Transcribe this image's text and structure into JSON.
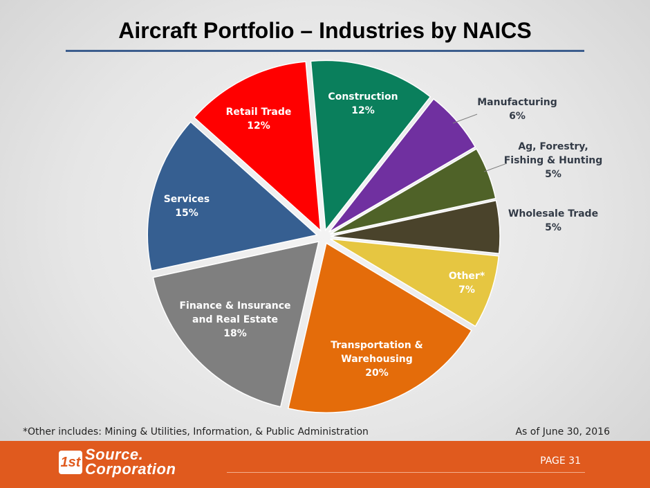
{
  "title": "Aircraft Portfolio – Industries by NAICS",
  "chart_data": {
    "type": "pie",
    "title": "Aircraft Portfolio – Industries by NAICS",
    "slices": [
      {
        "key": "construction",
        "lines": [
          "Construction",
          "12%"
        ],
        "value": 12,
        "color": "#0a7f5c",
        "label_color": "white"
      },
      {
        "key": "manufacturing",
        "lines": [
          "Manufacturing",
          "6%"
        ],
        "value": 6,
        "color": "#7030a0",
        "label_color": "dark"
      },
      {
        "key": "ag-forestry",
        "lines": [
          "Ag, Forestry,",
          "Fishing & Hunting",
          "5%"
        ],
        "value": 5,
        "color": "#4f6228",
        "label_color": "dark"
      },
      {
        "key": "wholesale-trade",
        "lines": [
          "Wholesale Trade",
          "5%"
        ],
        "value": 5,
        "color": "#4a432b",
        "label_color": "dark"
      },
      {
        "key": "other",
        "lines": [
          "Other*",
          "7%"
        ],
        "value": 7,
        "color": "#e6c641",
        "label_color": "white"
      },
      {
        "key": "transportation",
        "lines": [
          "Transportation &",
          "Warehousing",
          "20%"
        ],
        "value": 20,
        "color": "#e46c0a",
        "label_color": "white"
      },
      {
        "key": "finance",
        "lines": [
          "Finance & Insurance",
          "and Real Estate",
          "18%"
        ],
        "value": 18,
        "color": "#7f7f7f",
        "label_color": "white"
      },
      {
        "key": "services",
        "lines": [
          "Services",
          "15%"
        ],
        "value": 15,
        "color": "#365f91",
        "label_color": "white"
      },
      {
        "key": "retail-trade",
        "lines": [
          "Retail Trade",
          "12%"
        ],
        "value": 12,
        "color": "#ff0000",
        "label_color": "white"
      }
    ]
  },
  "footnote": "*Other includes: Mining & Utilities, Information, & Public Administration",
  "as_of": "As of June 30, 2016",
  "footer": {
    "logo_badge": "1st",
    "logo_line1": "Source.",
    "logo_line2": "Corporation",
    "page_number": "PAGE 31"
  }
}
